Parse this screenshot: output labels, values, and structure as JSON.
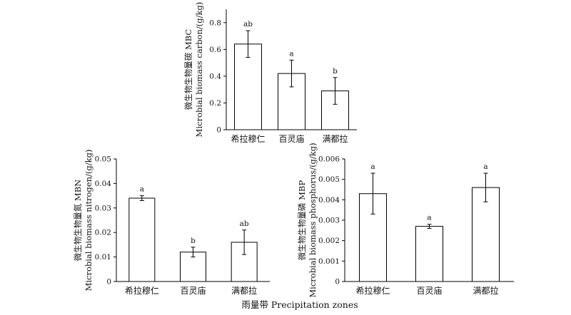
{
  "figure": {
    "xlabel": "雨量带 Precipitation zones"
  },
  "chart_data": [
    {
      "type": "bar",
      "categories": [
        "希拉穆仁",
        "百灵庙",
        "满都拉"
      ],
      "values": [
        0.64,
        0.42,
        0.29
      ],
      "errors": [
        0.1,
        0.1,
        0.1
      ],
      "significance": [
        "ab",
        "a",
        "b"
      ],
      "ylabel_cn": "微生物生物量碳 MBC",
      "ylabel_en": "Microbial biomass carbon/(g/kg)",
      "ylim": [
        0,
        0.9
      ],
      "yticks": [
        0,
        0.2,
        0.4,
        0.6,
        0.8
      ],
      "ytick_labels": [
        "0",
        "0.2",
        "0.4",
        "0.6",
        "0.8"
      ],
      "grid": false
    },
    {
      "type": "bar",
      "categories": [
        "希拉穆仁",
        "百灵庙",
        "满都拉"
      ],
      "values": [
        0.034,
        0.012,
        0.016
      ],
      "errors": [
        0.001,
        0.002,
        0.005
      ],
      "significance": [
        "a",
        "b",
        "ab"
      ],
      "ylabel_cn": "微生物生物量氮 MBN",
      "ylabel_en": "Microbial biomass nitrogen/(g/kg)",
      "ylim": [
        0,
        0.05
      ],
      "yticks": [
        0,
        0.01,
        0.02,
        0.03,
        0.04,
        0.05
      ],
      "ytick_labels": [
        "0",
        "0.01",
        "0.02",
        "0.03",
        "0.04",
        "0.05"
      ],
      "grid": false
    },
    {
      "type": "bar",
      "categories": [
        "希拉穆仁",
        "百灵庙",
        "满都拉"
      ],
      "values": [
        0.0043,
        0.0027,
        0.0046
      ],
      "errors": [
        0.001,
        0.0001,
        0.0007
      ],
      "significance": [
        "a",
        "a",
        "a"
      ],
      "ylabel_cn": "微生物生物量磷 MBP",
      "ylabel_en": "Microbial biomass phosphorus/(g/kg)",
      "ylim": [
        0,
        0.006
      ],
      "yticks": [
        0,
        0.001,
        0.002,
        0.003,
        0.004,
        0.005,
        0.006
      ],
      "ytick_labels": [
        "0",
        "0.001",
        "0.002",
        "0.003",
        "0.004",
        "0.005",
        "0.006"
      ],
      "grid": false
    }
  ]
}
